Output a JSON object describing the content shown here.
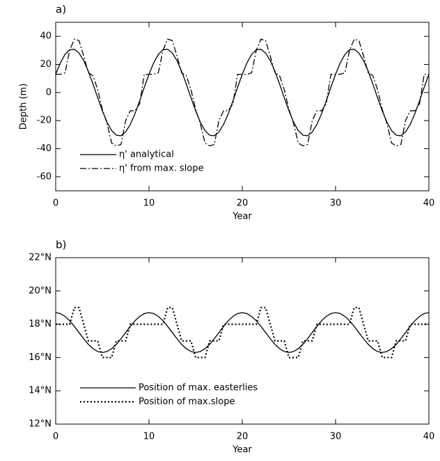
{
  "chart_data": [
    {
      "type": "line",
      "title": "a)",
      "xlabel": "Year",
      "ylabel": "Depth (m)",
      "xlim": [
        0,
        40
      ],
      "xticks": [
        0,
        10,
        20,
        30,
        40
      ],
      "ylim": [
        -70,
        50
      ],
      "yticks": [
        -60,
        -40,
        -20,
        0,
        20,
        40
      ],
      "legend": "lower left",
      "grid": false,
      "x": [
        0,
        0.5,
        1,
        1.5,
        2,
        2.5,
        3,
        3.5,
        4,
        4.5,
        5,
        5.5,
        6,
        6.5,
        7,
        7.5,
        8,
        8.5,
        9,
        9.5,
        10,
        10.5,
        11,
        11.5,
        12,
        12.5,
        13,
        13.5,
        14,
        14.5,
        15,
        15.5,
        16,
        16.5,
        17,
        17.5,
        18,
        18.5,
        19,
        19.5,
        20,
        20.5,
        21,
        21.5,
        22,
        22.5,
        23,
        23.5,
        24,
        24.5,
        25,
        25.5,
        26,
        26.5,
        27,
        27.5,
        28,
        28.5,
        29,
        29.5,
        30,
        30.5,
        31,
        31.5,
        32,
        32.5,
        33,
        33.5,
        34,
        34.5,
        35,
        35.5,
        36,
        36.5,
        37,
        37.5,
        38,
        38.5,
        39,
        39.5,
        40
      ],
      "series": [
        {
          "name": "η' analytical",
          "color": "#000000",
          "dash": "solid",
          "values": [
            13,
            21.1,
            27.1,
            30.4,
            30.8,
            28.1,
            22.7,
            15.1,
            6,
            -3.7,
            -13,
            -21.1,
            -27.1,
            -30.4,
            -30.8,
            -28.1,
            -22.7,
            -15.1,
            -6,
            3.7,
            13,
            21.1,
            27.1,
            30.4,
            30.8,
            28.1,
            22.7,
            15.1,
            6,
            -3.7,
            -13,
            -21.1,
            -27.1,
            -30.4,
            -30.8,
            -28.1,
            -22.7,
            -15.1,
            -6,
            3.7,
            13,
            21.1,
            27.1,
            30.4,
            30.8,
            28.1,
            22.7,
            15.1,
            6,
            -3.7,
            -13,
            -21.1,
            -27.1,
            -30.4,
            -30.8,
            -28.1,
            -22.7,
            -15.1,
            -6,
            3.7,
            13,
            21.1,
            27.1,
            30.4,
            30.8,
            28.1,
            22.7,
            15.1,
            6,
            -3.7,
            -13,
            -21.1,
            -27.1,
            -30.4,
            -30.8,
            -28.1,
            -22.7,
            -15.1,
            -6,
            3.7,
            13
          ]
        },
        {
          "name": "η' from max. slope",
          "color": "#000000",
          "dash": "dashdot",
          "values": [
            13,
            13,
            14,
            30,
            38,
            37,
            26,
            14,
            12,
            2,
            -12,
            -22,
            -36,
            -38,
            -37,
            -20,
            -13,
            -13,
            -8,
            13,
            13,
            13,
            14,
            30,
            38,
            37,
            26,
            14,
            12,
            2,
            -12,
            -22,
            -36,
            -38,
            -37,
            -20,
            -13,
            -13,
            -8,
            13,
            13,
            13,
            14,
            30,
            38,
            37,
            26,
            14,
            12,
            2,
            -12,
            -22,
            -36,
            -38,
            -37,
            -20,
            -13,
            -13,
            -8,
            13,
            13,
            13,
            14,
            30,
            38,
            37,
            26,
            14,
            12,
            2,
            -12,
            -22,
            -36,
            -38,
            -37,
            -20,
            -13,
            -13,
            -8,
            13,
            13
          ]
        }
      ]
    },
    {
      "type": "line",
      "title": "b)",
      "xlabel": "Year",
      "xlim": [
        0,
        40
      ],
      "xticks": [
        0,
        10,
        20,
        30,
        40
      ],
      "ylim": [
        12,
        22
      ],
      "yticks": [
        {
          "value": 12,
          "label": "12°N"
        },
        {
          "value": 14,
          "label": "14°N"
        },
        {
          "value": 16,
          "label": "16°N"
        },
        {
          "value": 18,
          "label": "18°N"
        },
        {
          "value": 20,
          "label": "20°N"
        },
        {
          "value": 22,
          "label": "22°N"
        }
      ],
      "legend": "lower left",
      "grid": false,
      "x": [
        0,
        0.5,
        1,
        1.5,
        2,
        2.5,
        3,
        3.5,
        4,
        4.5,
        5,
        5.5,
        6,
        6.5,
        7,
        7.5,
        8,
        8.5,
        9,
        9.5,
        10,
        10.5,
        11,
        11.5,
        12,
        12.5,
        13,
        13.5,
        14,
        14.5,
        15,
        15.5,
        16,
        16.5,
        17,
        17.5,
        18,
        18.5,
        19,
        19.5,
        20,
        20.5,
        21,
        21.5,
        22,
        22.5,
        23,
        23.5,
        24,
        24.5,
        25,
        25.5,
        26,
        26.5,
        27,
        27.5,
        28,
        28.5,
        29,
        29.5,
        30,
        30.5,
        31,
        31.5,
        32,
        32.5,
        33,
        33.5,
        34,
        34.5,
        35,
        35.5,
        36,
        36.5,
        37,
        37.5,
        38,
        38.5,
        39,
        39.5,
        40
      ],
      "series": [
        {
          "name": "Position of max. easterlies",
          "color": "#000000",
          "dash": "solid",
          "values": [
            18.7,
            18.64,
            18.47,
            18.21,
            17.87,
            17.5,
            17.13,
            16.79,
            16.53,
            16.36,
            16.3,
            16.36,
            16.53,
            16.79,
            17.13,
            17.5,
            17.87,
            18.21,
            18.47,
            18.64,
            18.7,
            18.64,
            18.47,
            18.21,
            17.87,
            17.5,
            17.13,
            16.79,
            16.53,
            16.36,
            16.3,
            16.36,
            16.53,
            16.79,
            17.13,
            17.5,
            17.87,
            18.21,
            18.47,
            18.64,
            18.7,
            18.64,
            18.47,
            18.21,
            17.87,
            17.5,
            17.13,
            16.79,
            16.53,
            16.36,
            16.3,
            16.36,
            16.53,
            16.79,
            17.13,
            17.5,
            17.87,
            18.21,
            18.47,
            18.64,
            18.7,
            18.64,
            18.47,
            18.21,
            17.87,
            17.5,
            17.13,
            16.79,
            16.53,
            16.36,
            16.3,
            16.36,
            16.53,
            16.79,
            17.13,
            17.5,
            17.87,
            18.21,
            18.47,
            18.64,
            18.7
          ]
        },
        {
          "name": "Position of max.slope",
          "color": "#000000",
          "dash": "dotted",
          "values": [
            18,
            18,
            18,
            18,
            19,
            19,
            18,
            17,
            17,
            17,
            16,
            16,
            16,
            17,
            17,
            17,
            18,
            18,
            18,
            18,
            18,
            18,
            18,
            18,
            19,
            19,
            18,
            17,
            17,
            17,
            16,
            16,
            16,
            17,
            17,
            17,
            18,
            18,
            18,
            18,
            18,
            18,
            18,
            18,
            19,
            19,
            18,
            17,
            17,
            17,
            16,
            16,
            16,
            17,
            17,
            17,
            18,
            18,
            18,
            18,
            18,
            18,
            18,
            18,
            19,
            19,
            18,
            17,
            17,
            17,
            16,
            16,
            16,
            17,
            17,
            17,
            18,
            18,
            18,
            18,
            18
          ]
        }
      ]
    }
  ]
}
